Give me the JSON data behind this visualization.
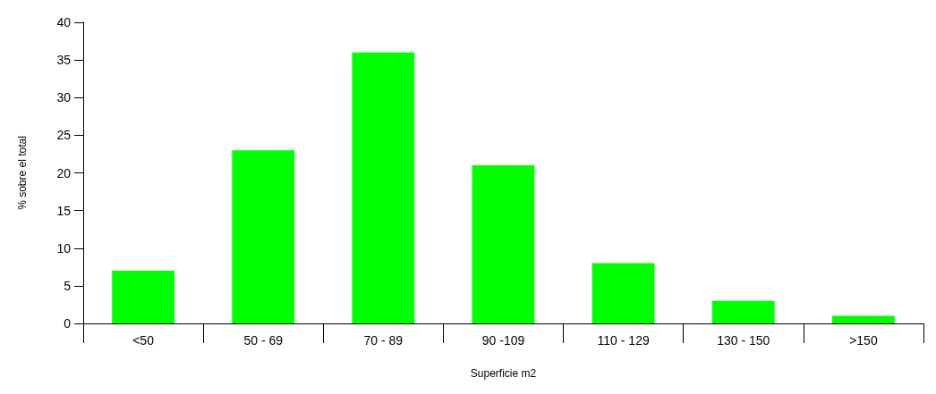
{
  "chart_data": {
    "type": "bar",
    "xlabel": "Superficie m2",
    "ylabel": "% sobre el total",
    "categories": [
      "<50",
      "50 - 69",
      "70 - 89",
      "90 -109",
      "110 - 129",
      "130 - 150",
      ">150"
    ],
    "values": [
      7,
      23,
      36,
      21,
      8,
      3,
      1
    ],
    "color": "#00ff00",
    "ylim": [
      0,
      40
    ],
    "yticks": [
      0,
      5,
      10,
      15,
      20,
      25,
      30,
      35,
      40
    ],
    "grid": false
  }
}
